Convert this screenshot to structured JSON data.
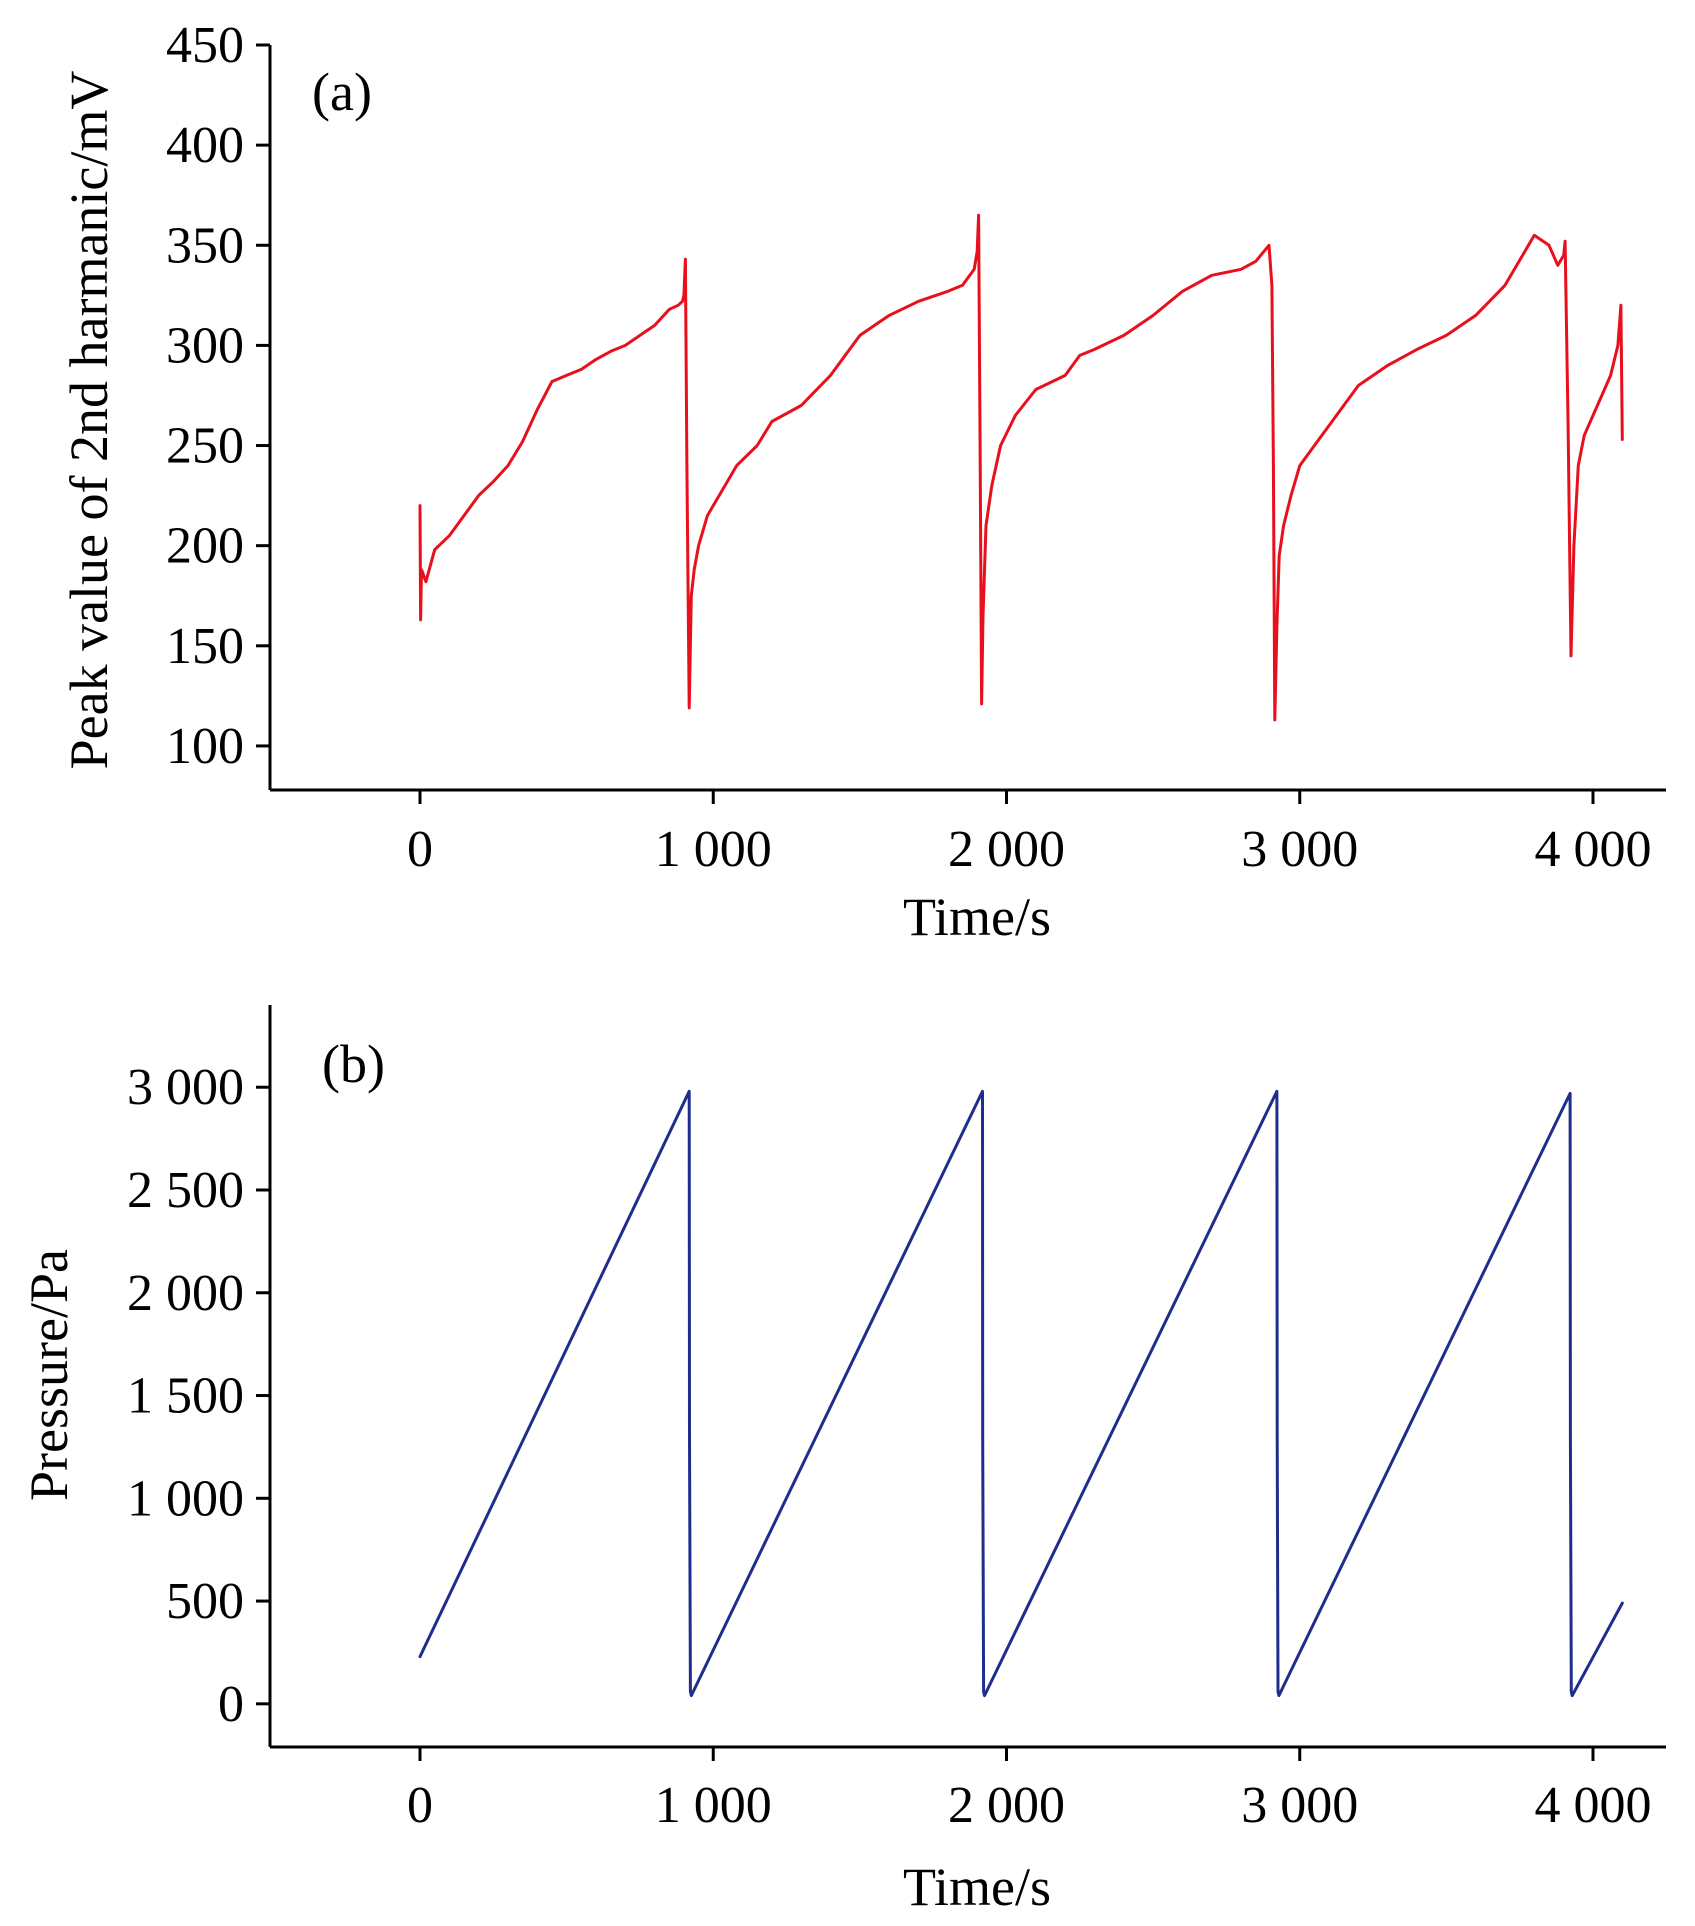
{
  "chart_data": [
    {
      "type": "line",
      "panel_label": "(a)",
      "xlabel": "Time/s",
      "ylabel": "Peak value of 2nd harmanic/mV",
      "xlim": [
        -500,
        4300
      ],
      "ylim": [
        78,
        450
      ],
      "x_ticks": [
        0,
        1000,
        2000,
        3000,
        4000
      ],
      "x_tick_labels": [
        "0",
        "1 000",
        "2 000",
        "3 000",
        "4 000"
      ],
      "y_ticks": [
        100,
        150,
        200,
        250,
        300,
        350,
        400,
        450
      ],
      "y_tick_labels": [
        "100",
        "150",
        "200",
        "250",
        "300",
        "350",
        "400",
        "450"
      ],
      "grid": false,
      "color": "#e8101c",
      "series": [
        {
          "x": [
            0,
            2,
            5,
            20,
            50,
            100,
            150,
            200,
            250,
            300,
            350,
            400,
            450,
            500,
            550,
            600,
            650,
            700,
            750,
            800,
            850,
            880,
            895,
            900,
            905,
            910,
            918,
            925,
            935,
            950,
            980,
            1020,
            1080,
            1150,
            1200,
            1300,
            1400,
            1450,
            1500,
            1550,
            1600,
            1700,
            1800,
            1850,
            1890,
            1900,
            1905,
            1910,
            1915,
            1920,
            1930,
            1950,
            1980,
            2030,
            2100,
            2200,
            2250,
            2300,
            2400,
            2500,
            2600,
            2700,
            2800,
            2850,
            2895,
            2905,
            2910,
            2915,
            2922,
            2930,
            2945,
            2970,
            3000,
            3050,
            3100,
            3150,
            3200,
            3300,
            3400,
            3500,
            3600,
            3700,
            3800,
            3850,
            3880,
            3900,
            3905,
            3915,
            3925,
            3935,
            3950,
            3970,
            4000,
            4030,
            4060,
            4085,
            4090,
            4095,
            4100
          ],
          "y": [
            220,
            163,
            188,
            182,
            198,
            205,
            215,
            225,
            232,
            240,
            252,
            268,
            282,
            285,
            288,
            293,
            297,
            300,
            305,
            310,
            318,
            320,
            322,
            325,
            343,
            240,
            119,
            175,
            188,
            200,
            215,
            225,
            240,
            250,
            262,
            270,
            285,
            295,
            305,
            310,
            315,
            322,
            327,
            330,
            338,
            347,
            365,
            250,
            121,
            165,
            210,
            230,
            250,
            265,
            278,
            285,
            295,
            298,
            305,
            315,
            327,
            335,
            338,
            342,
            350,
            330,
            240,
            113,
            160,
            195,
            210,
            225,
            240,
            250,
            260,
            270,
            280,
            290,
            298,
            305,
            315,
            330,
            355,
            350,
            340,
            345,
            352,
            260,
            145,
            200,
            240,
            255,
            265,
            275,
            285,
            300,
            310,
            320,
            253
          ]
        }
      ]
    },
    {
      "type": "line",
      "panel_label": "(b)",
      "xlabel": "Time/s",
      "ylabel": "Pressure/Pa",
      "xlim": [
        -500,
        4300
      ],
      "ylim": [
        -210,
        3400
      ],
      "x_ticks": [
        0,
        1000,
        2000,
        3000,
        4000
      ],
      "x_tick_labels": [
        "0",
        "1 000",
        "2 000",
        "3 000",
        "4 000"
      ],
      "y_ticks": [
        0,
        500,
        1000,
        1500,
        2000,
        2500,
        3000
      ],
      "y_tick_labels": [
        "0",
        "500",
        "1 000",
        "1 500",
        "2 000",
        "2 500",
        "3 000"
      ],
      "grid": false,
      "color": "#1f2e8c",
      "series": [
        {
          "x": [
            0,
            918,
            919,
            922,
            925,
            1918,
            1919,
            1922,
            1925,
            2922,
            2923,
            2926,
            2929,
            3922,
            3923,
            3926,
            3929,
            4100
          ],
          "y": [
            230,
            2980,
            1300,
            60,
            40,
            2980,
            1300,
            60,
            40,
            2980,
            1300,
            60,
            40,
            2970,
            1300,
            60,
            40,
            490
          ]
        }
      ]
    }
  ]
}
